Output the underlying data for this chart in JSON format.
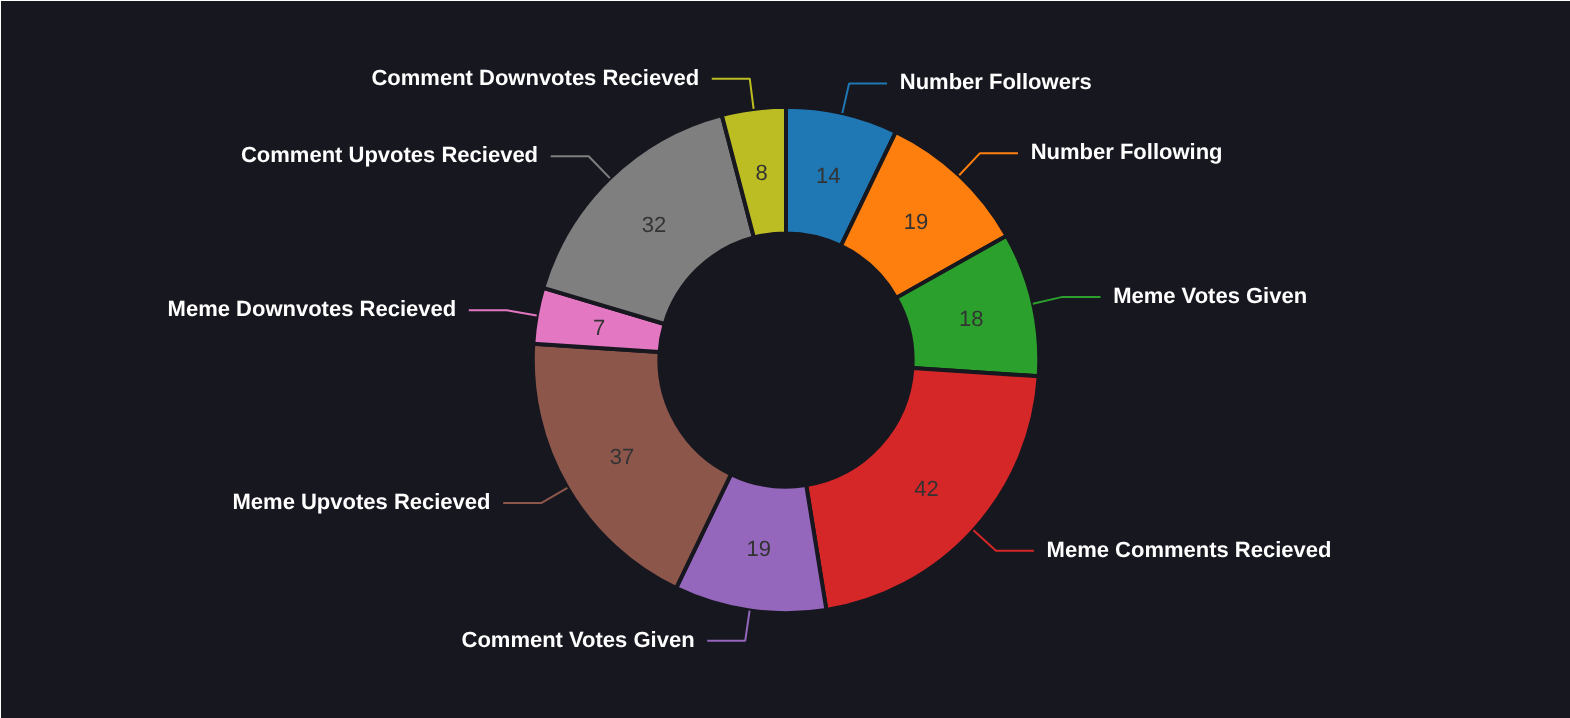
{
  "chart_data": {
    "type": "donut",
    "categories": [
      "Number Followers",
      "Number Following",
      "Meme Votes Given",
      "Meme Comments Recieved",
      "Comment Votes Given",
      "Meme Upvotes Recieved",
      "Meme Downvotes Recieved",
      "Comment Upvotes Recieved",
      "Comment Downvotes Recieved"
    ],
    "values": [
      14,
      19,
      18,
      42,
      19,
      37,
      7,
      32,
      8
    ],
    "colors": [
      "#1f77b4",
      "#ff7f0e",
      "#2ca02c",
      "#d62728",
      "#9467bd",
      "#8c564b",
      "#e377c2",
      "#7f7f7f",
      "#bcbd22"
    ],
    "data_labels": true
  }
}
